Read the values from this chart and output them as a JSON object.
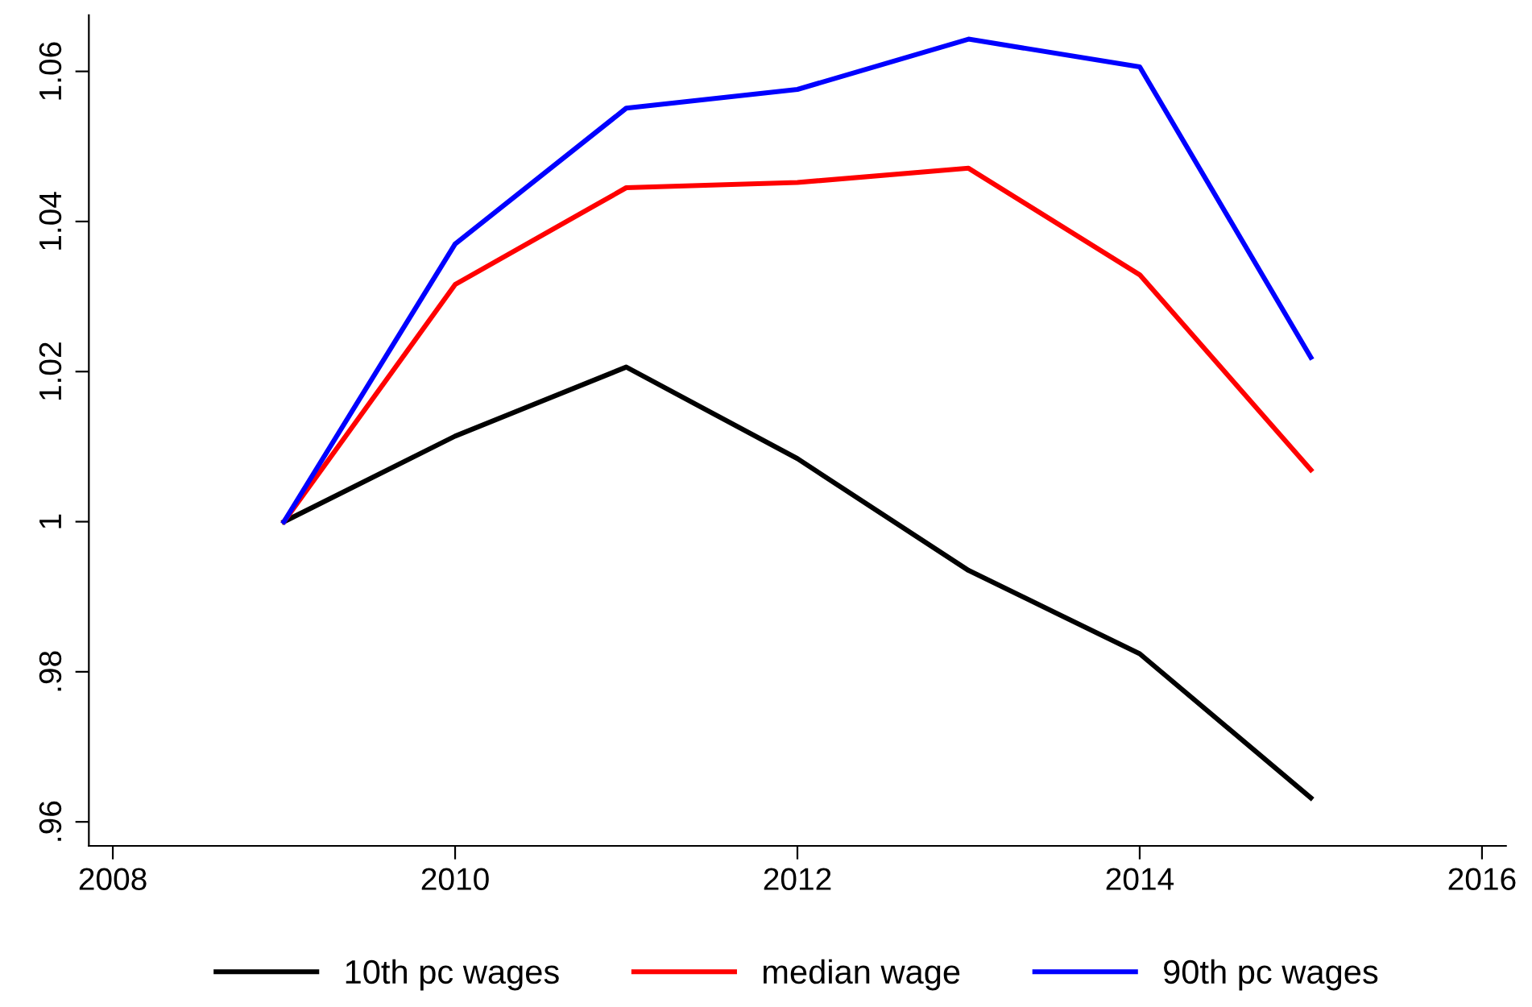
{
  "chart_data": {
    "type": "line",
    "x": [
      2009,
      2010,
      2011,
      2012,
      2013,
      2014,
      2015
    ],
    "series": [
      {
        "name": "10th pc wages",
        "color": "#000000",
        "values": [
          1.0,
          1.0114,
          1.0206,
          1.0084,
          0.9935,
          0.9824,
          0.9632
        ]
      },
      {
        "name": "median wage",
        "color": "#ff0000",
        "values": [
          1.0,
          1.0316,
          1.0445,
          1.0452,
          1.0471,
          1.0329,
          1.0069
        ]
      },
      {
        "name": "90th pc wages",
        "color": "#0000ff",
        "values": [
          1.0,
          1.037,
          1.0551,
          1.0576,
          1.0643,
          1.0606,
          1.0219
        ]
      }
    ],
    "xlim": [
      2007.86,
      2016.14
    ],
    "xticks": [
      2008,
      2010,
      2012,
      2014,
      2016
    ],
    "ylim": [
      0.9568,
      1.0675
    ],
    "yticks": [
      {
        "value": 0.96,
        "label": ".96"
      },
      {
        "value": 0.98,
        "label": ".98"
      },
      1,
      {
        "value": 1.02,
        "label": "1.02"
      },
      {
        "value": 1.04,
        "label": "1.04"
      },
      {
        "value": 1.06,
        "label": "1.06"
      }
    ],
    "grid": false,
    "legend": "bottom",
    "line_style": "solid",
    "marker": "none"
  }
}
